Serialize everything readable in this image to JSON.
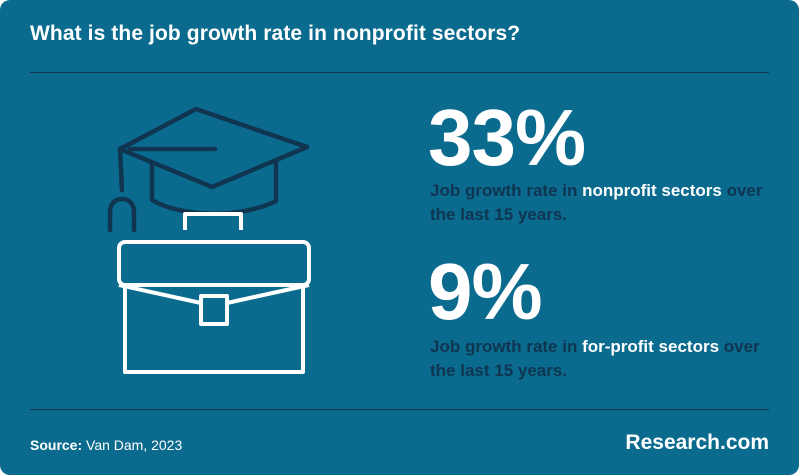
{
  "title": "What is the job growth rate in nonprofit sectors?",
  "stats": [
    {
      "value": "33%",
      "prefix": "Job growth rate in ",
      "highlight": "nonprofit sectors",
      "suffix": " over the last 15 years."
    },
    {
      "value": "9%",
      "prefix": "Job growth rate in ",
      "highlight": "for-profit sectors",
      "suffix": " over the last 15 years."
    }
  ],
  "source": {
    "label": "Source:",
    "text": " Van Dam, 2023"
  },
  "brand": "Research.com",
  "colors": {
    "background": "#0b6b8e",
    "dark_text": "#0f3550",
    "highlight_text": "#ffffff"
  },
  "icons": [
    "graduation-cap-icon",
    "briefcase-icon"
  ]
}
